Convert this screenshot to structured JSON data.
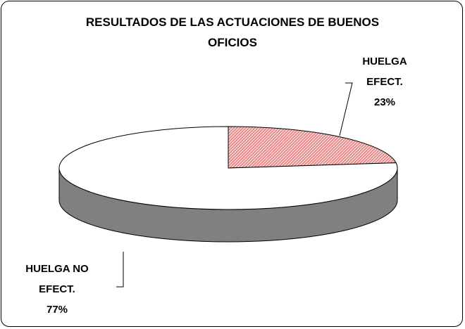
{
  "chart_data": {
    "type": "pie",
    "title": "RESULTADOS DE LAS ACTUACIONES DE BUENOS OFICIOS",
    "categories": [
      "HUELGA EFECT.",
      "HUELGA NO EFECT."
    ],
    "values": [
      23,
      77
    ],
    "value_labels": [
      "23%",
      "77%"
    ],
    "colors": [
      "#e06666",
      "#ffffff"
    ]
  }
}
